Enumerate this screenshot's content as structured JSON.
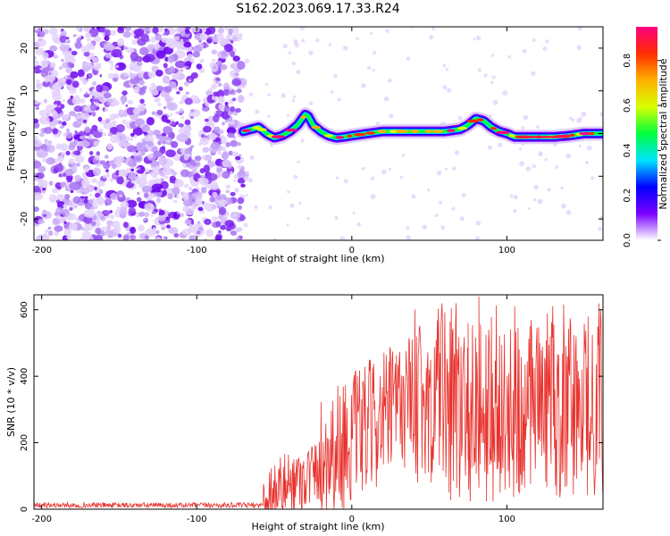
{
  "title": "S162.2023.069.17.33.R24",
  "chart_data": [
    {
      "type": "heatmap",
      "xlabel": "Height of straight line (km)",
      "ylabel": "Frequency (Hz)",
      "xlim": [
        -205,
        162
      ],
      "ylim": [
        -25,
        25
      ],
      "xticks": [
        -200,
        -100,
        0,
        100
      ],
      "yticks": [
        -20,
        -10,
        0,
        10,
        20
      ],
      "noise_region_x": [
        -205,
        -70
      ],
      "ridge": {
        "x": [
          -70,
          -65,
          -60,
          -55,
          -50,
          -45,
          -40,
          -35,
          -30,
          -28,
          -25,
          -20,
          -15,
          -10,
          -5,
          0,
          10,
          20,
          30,
          40,
          50,
          60,
          70,
          75,
          80,
          85,
          90,
          95,
          100,
          105,
          110,
          120,
          130,
          140,
          150,
          162
        ],
        "y": [
          0.5,
          1.0,
          1.5,
          0.0,
          -1.0,
          -0.5,
          0.5,
          2.0,
          4.5,
          4.0,
          2.0,
          0.5,
          -0.5,
          -1.0,
          -0.8,
          -0.5,
          0.0,
          0.5,
          0.5,
          0.5,
          0.5,
          0.5,
          1.0,
          2.0,
          3.5,
          3.0,
          1.5,
          0.5,
          0.0,
          -0.8,
          -0.8,
          -0.8,
          -0.8,
          -0.5,
          0.0,
          0.0
        ]
      },
      "colorbar": {
        "label": "Normalized spectral amplitude",
        "range": [
          0,
          0.95
        ],
        "ticks": [
          "0.0",
          "0.2",
          "0.4",
          "0.6",
          "0.8"
        ],
        "colors": [
          "#ffffff",
          "#7a00ff",
          "#0000ff",
          "#00e5ff",
          "#00ff3c",
          "#d8ff00",
          "#ffb000",
          "#ff2d00",
          "#ff0080"
        ]
      }
    },
    {
      "type": "line",
      "xlabel": "Height of straight line (km)",
      "ylabel": "SNR (10 * v/v)",
      "xlim": [
        -205,
        162
      ],
      "ylim": [
        0,
        645
      ],
      "xticks": [
        -200,
        -100,
        0,
        100
      ],
      "yticks": [
        0,
        200,
        400,
        600
      ],
      "color": "#e8322d",
      "segments": [
        {
          "x_start": -205,
          "x_end": -57,
          "center": 12,
          "amplitude": 8
        },
        {
          "x_start": -57,
          "x_end": -20,
          "center_start": 40,
          "center_end": 120,
          "amplitude": 100
        },
        {
          "x_start": -20,
          "x_end": 40,
          "center_start": 150,
          "center_end": 340,
          "amplitude": 200
        },
        {
          "x_start": 40,
          "x_end": 162,
          "center": 360,
          "amplitude": 260
        }
      ],
      "peaks": [
        {
          "x": 82,
          "y": 640
        },
        {
          "x": 75,
          "y": 560
        },
        {
          "x": 128,
          "y": 520
        },
        {
          "x": 55,
          "y": 480
        }
      ]
    }
  ]
}
